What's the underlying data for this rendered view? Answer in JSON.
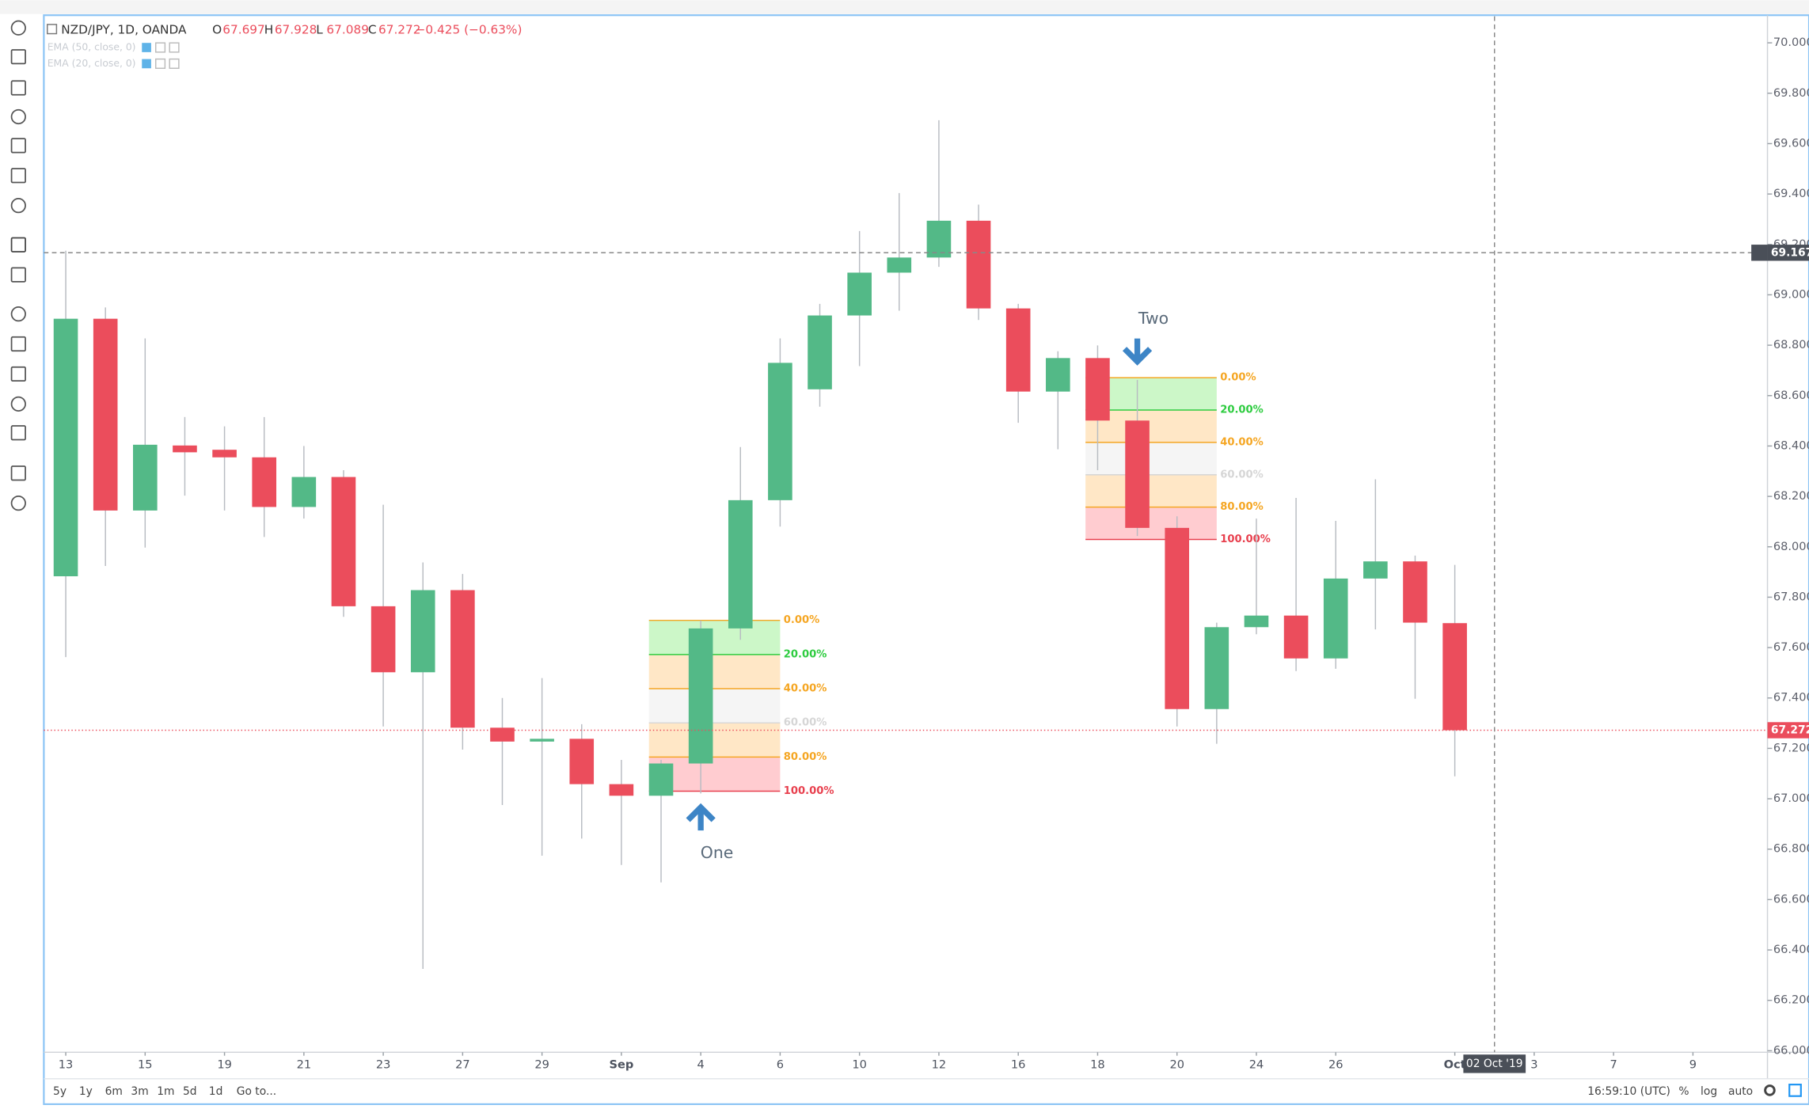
{
  "chart_data": {
    "type": "candlestick",
    "symbol": "NZD/JPY, 1D, OANDA",
    "indicators": [
      "EMA (50, close, 0)",
      "EMA (20, close, 0)"
    ],
    "ohlc_prefixes": [
      "O",
      "H",
      "L",
      "C"
    ],
    "change_label": "−0.425 (−0.63%)",
    "up_color": "#53b987",
    "down_color": "#eb4d5c",
    "open": [
      67.883,
      68.905,
      68.144,
      68.402,
      68.385,
      68.355,
      68.158,
      68.277,
      67.764,
      67.502,
      67.828,
      67.282,
      67.227,
      67.238,
      67.058,
      67.012,
      67.14,
      67.676,
      68.185,
      68.625,
      68.918,
      69.088,
      69.148,
      69.294,
      68.946,
      68.616,
      68.749,
      68.501,
      68.075,
      67.356,
      67.681,
      67.727,
      67.557,
      67.874,
      67.942,
      67.697
    ],
    "high": [
      69.175,
      68.95,
      68.827,
      68.515,
      68.478,
      68.515,
      68.4,
      68.304,
      68.167,
      67.938,
      67.892,
      67.4,
      67.479,
      67.296,
      67.154,
      67.154,
      67.708,
      68.396,
      68.827,
      68.964,
      69.253,
      69.404,
      69.693,
      69.358,
      68.964,
      68.776,
      68.799,
      68.662,
      68.121,
      67.699,
      68.112,
      68.194,
      68.103,
      68.268,
      67.965,
      67.928
    ],
    "low": [
      67.562,
      67.924,
      67.997,
      68.203,
      68.144,
      68.039,
      68.112,
      67.722,
      67.287,
      66.325,
      67.195,
      66.975,
      66.774,
      66.842,
      66.737,
      66.668,
      67.021,
      67.631,
      68.08,
      68.556,
      68.717,
      68.937,
      69.111,
      68.9,
      68.492,
      68.387,
      68.304,
      68.043,
      67.287,
      67.218,
      67.653,
      67.507,
      67.516,
      67.672,
      67.397,
      67.089
    ],
    "close": [
      68.905,
      68.144,
      68.405,
      68.375,
      68.355,
      68.158,
      68.277,
      67.764,
      67.502,
      67.828,
      67.282,
      67.227,
      67.238,
      67.058,
      67.012,
      67.14,
      67.676,
      68.185,
      68.73,
      68.918,
      69.088,
      69.148,
      69.294,
      68.946,
      68.616,
      68.749,
      68.501,
      68.075,
      67.356,
      67.681,
      67.727,
      67.557,
      67.874,
      67.942,
      67.699,
      67.272
    ],
    "xticks": [
      {
        "value": 0,
        "label": "13"
      },
      {
        "value": 2,
        "label": "15"
      },
      {
        "value": 4,
        "label": "19"
      },
      {
        "value": 6,
        "label": "21"
      },
      {
        "value": 8,
        "label": "23"
      },
      {
        "value": 10,
        "label": "27"
      },
      {
        "value": 12,
        "label": "29"
      },
      {
        "value": 14,
        "label": "Sep"
      },
      {
        "value": 16,
        "label": "4"
      },
      {
        "value": 18,
        "label": "6"
      },
      {
        "value": 20,
        "label": "10"
      },
      {
        "value": 22,
        "label": "12"
      },
      {
        "value": 24,
        "label": "16"
      },
      {
        "value": 26,
        "label": "18"
      },
      {
        "value": 28,
        "label": "20"
      },
      {
        "value": 30,
        "label": "24"
      },
      {
        "value": 32,
        "label": "26"
      },
      {
        "value": 35,
        "label": "Oct"
      },
      {
        "value": 37,
        "label": "3"
      },
      {
        "value": 39,
        "label": "7"
      },
      {
        "value": 41,
        "label": "9"
      }
    ],
    "ylim": [
      65.994,
      70.105
    ],
    "yticks": [
      {
        "value": 66.0,
        "label": "66.000"
      },
      {
        "value": 66.2,
        "label": "66.200"
      },
      {
        "value": 66.4,
        "label": "66.400"
      },
      {
        "value": 66.6,
        "label": "66.600"
      },
      {
        "value": 66.8,
        "label": "66.800"
      },
      {
        "value": 67.0,
        "label": "67.000"
      },
      {
        "value": 67.2,
        "label": "67.200"
      },
      {
        "value": 67.4,
        "label": "67.400"
      },
      {
        "value": 67.6,
        "label": "67.600"
      },
      {
        "value": 67.8,
        "label": "67.800"
      },
      {
        "value": 68.0,
        "label": "68.000"
      },
      {
        "value": 68.2,
        "label": "68.200"
      },
      {
        "value": 68.4,
        "label": "68.400"
      },
      {
        "value": 68.6,
        "label": "68.600"
      },
      {
        "value": 68.8,
        "label": "68.800"
      },
      {
        "value": 69.0,
        "label": "69.000"
      },
      {
        "value": 69.2,
        "label": "69.200"
      },
      {
        "value": 69.4,
        "label": "69.400"
      },
      {
        "value": 69.6,
        "label": "69.600"
      },
      {
        "value": 69.8,
        "label": "69.800"
      },
      {
        "value": 70.0,
        "label": "70.000"
      }
    ],
    "crosshair": {
      "price": 69.167,
      "index": 36,
      "time_label": "02 Oct '19"
    },
    "fibs": [
      {
        "annotation": "One",
        "arrow": "up",
        "start": 15,
        "end": 18,
        "price_0": 67.708,
        "price_100": 67.03
      },
      {
        "annotation": "Two",
        "arrow": "down",
        "start": 26,
        "end": 29,
        "price_0": 68.671,
        "price_100": 68.029
      }
    ],
    "fib_levels": [
      0,
      20,
      40,
      60,
      80,
      100
    ],
    "fib_level_labels": [
      "0.00%",
      "20.00%",
      "40.00%",
      "60.00%",
      "80.00%",
      "100.00%"
    ],
    "fib_level_colors": [
      "#f5a623",
      "#2ecc40",
      "#f5a623",
      "#d6d6d6",
      "#f5a623",
      "#e8404e"
    ],
    "fib_band_colors": [
      "#ccf7c8",
      "#ffe7c6",
      "#f5f5f5",
      "#ffe7c6",
      "#ffccd0"
    ],
    "arrow_color": "#3d85c6"
  },
  "bottom_bar": {
    "ranges": [
      "5y",
      "1y",
      "6m",
      "3m",
      "1m",
      "5d",
      "1d"
    ],
    "goto": "Go to...",
    "clock": "16:59:10 (UTC)",
    "options": [
      "%",
      "log",
      "auto"
    ]
  }
}
